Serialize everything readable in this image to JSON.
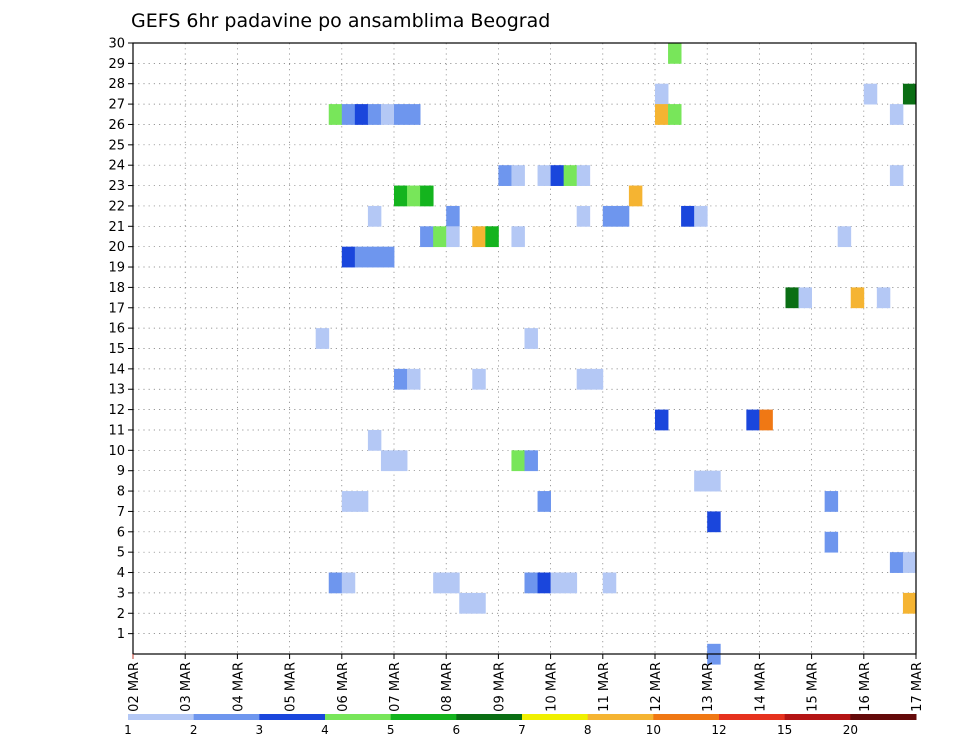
{
  "chart_data": {
    "type": "heatmap",
    "title": "GEFS 6hr padavine po ansamblima Beograd",
    "x_labels": [
      "02 MAR",
      "03 MAR",
      "04 MAR",
      "05 MAR",
      "06 MAR",
      "07 MAR",
      "08 MAR",
      "09 MAR",
      "10 MAR",
      "11 MAR",
      "12 MAR",
      "13 MAR",
      "14 MAR",
      "15 MAR",
      "16 MAR",
      "17 MAR"
    ],
    "y_labels": [
      "1",
      "2",
      "3",
      "4",
      "5",
      "6",
      "7",
      "8",
      "9",
      "10",
      "11",
      "12",
      "13",
      "14",
      "15",
      "16",
      "17",
      "18",
      "19",
      "20",
      "21",
      "22",
      "23",
      "24",
      "25",
      "26",
      "27",
      "28",
      "29",
      "30"
    ],
    "x_range_days": [
      2,
      17
    ],
    "y_range": [
      0,
      30
    ],
    "grid": true,
    "legend_placement": "bottom",
    "colorbar": {
      "labels": [
        "1",
        "2",
        "3",
        "4",
        "5",
        "6",
        "7",
        "8",
        "10",
        "12",
        "15",
        "20"
      ],
      "colors": [
        "#b4c8f5",
        "#6e96ee",
        "#1a46dc",
        "#78e65a",
        "#14b41e",
        "#0a6e14",
        "#f0f000",
        "#f5b432",
        "#f07814",
        "#e6321e",
        "#b41414",
        "#640a0a"
      ]
    },
    "cells": [
      {
        "t": 12.25,
        "m": 30,
        "c": 4
      },
      {
        "t": 12.0,
        "m": 28,
        "c": 1
      },
      {
        "t": 16.0,
        "m": 28,
        "c": 1
      },
      {
        "t": 16.75,
        "m": 28,
        "c": 6
      },
      {
        "t": 5.75,
        "m": 27,
        "c": 4
      },
      {
        "t": 6.0,
        "m": 27,
        "c": 2
      },
      {
        "t": 6.25,
        "m": 27,
        "c": 3
      },
      {
        "t": 6.5,
        "m": 27,
        "c": 2
      },
      {
        "t": 6.75,
        "m": 27,
        "c": 1
      },
      {
        "t": 7.0,
        "m": 27,
        "c": 2
      },
      {
        "t": 7.25,
        "m": 27,
        "c": 2
      },
      {
        "t": 12.0,
        "m": 27,
        "c": 8
      },
      {
        "t": 12.25,
        "m": 27,
        "c": 4
      },
      {
        "t": 16.5,
        "m": 27,
        "c": 1
      },
      {
        "t": 9.0,
        "m": 24,
        "c": 2
      },
      {
        "t": 9.25,
        "m": 24,
        "c": 1
      },
      {
        "t": 9.75,
        "m": 24,
        "c": 1
      },
      {
        "t": 10.0,
        "m": 24,
        "c": 3
      },
      {
        "t": 10.25,
        "m": 24,
        "c": 4
      },
      {
        "t": 10.5,
        "m": 24,
        "c": 1
      },
      {
        "t": 16.5,
        "m": 24,
        "c": 1
      },
      {
        "t": 7.0,
        "m": 23,
        "c": 5
      },
      {
        "t": 7.25,
        "m": 23,
        "c": 4
      },
      {
        "t": 7.5,
        "m": 23,
        "c": 5
      },
      {
        "t": 11.5,
        "m": 23,
        "c": 8
      },
      {
        "t": 6.5,
        "m": 22,
        "c": 1
      },
      {
        "t": 8.0,
        "m": 22,
        "c": 2
      },
      {
        "t": 10.5,
        "m": 22,
        "c": 1
      },
      {
        "t": 11.0,
        "m": 22,
        "c": 2
      },
      {
        "t": 11.25,
        "m": 22,
        "c": 2
      },
      {
        "t": 12.5,
        "m": 22,
        "c": 3
      },
      {
        "t": 12.75,
        "m": 22,
        "c": 1
      },
      {
        "t": 7.5,
        "m": 21,
        "c": 2
      },
      {
        "t": 7.75,
        "m": 21,
        "c": 4
      },
      {
        "t": 8.0,
        "m": 21,
        "c": 1
      },
      {
        "t": 8.5,
        "m": 21,
        "c": 8
      },
      {
        "t": 8.75,
        "m": 21,
        "c": 5
      },
      {
        "t": 9.25,
        "m": 21,
        "c": 1
      },
      {
        "t": 15.5,
        "m": 21,
        "c": 1
      },
      {
        "t": 6.0,
        "m": 20,
        "c": 3
      },
      {
        "t": 6.25,
        "m": 20,
        "c": 2
      },
      {
        "t": 6.5,
        "m": 20,
        "c": 2
      },
      {
        "t": 6.75,
        "m": 20,
        "c": 2
      },
      {
        "t": 14.5,
        "m": 18,
        "c": 6
      },
      {
        "t": 14.75,
        "m": 18,
        "c": 1
      },
      {
        "t": 15.75,
        "m": 18,
        "c": 8
      },
      {
        "t": 16.25,
        "m": 18,
        "c": 1
      },
      {
        "t": 5.5,
        "m": 16,
        "c": 1
      },
      {
        "t": 9.5,
        "m": 16,
        "c": 1
      },
      {
        "t": 7.0,
        "m": 14,
        "c": 2
      },
      {
        "t": 7.25,
        "m": 14,
        "c": 1
      },
      {
        "t": 8.5,
        "m": 14,
        "c": 1
      },
      {
        "t": 10.5,
        "m": 14,
        "c": 1
      },
      {
        "t": 10.75,
        "m": 14,
        "c": 1
      },
      {
        "t": 12.0,
        "m": 12,
        "c": 3
      },
      {
        "t": 13.75,
        "m": 12,
        "c": 3
      },
      {
        "t": 14.0,
        "m": 12,
        "c": 9
      },
      {
        "t": 6.5,
        "m": 11,
        "c": 1
      },
      {
        "t": 6.75,
        "m": 10,
        "c": 1
      },
      {
        "t": 7.0,
        "m": 10,
        "c": 1
      },
      {
        "t": 9.25,
        "m": 10,
        "c": 4
      },
      {
        "t": 9.5,
        "m": 10,
        "c": 2
      },
      {
        "t": 12.75,
        "m": 9,
        "c": 1
      },
      {
        "t": 13.0,
        "m": 9,
        "c": 1
      },
      {
        "t": 6.0,
        "m": 8,
        "c": 1
      },
      {
        "t": 6.25,
        "m": 8,
        "c": 1
      },
      {
        "t": 9.75,
        "m": 8,
        "c": 2
      },
      {
        "t": 15.25,
        "m": 8,
        "c": 2
      },
      {
        "t": 13.0,
        "m": 7,
        "c": 3
      },
      {
        "t": 15.25,
        "m": 6,
        "c": 2
      },
      {
        "t": 16.5,
        "m": 5,
        "c": 2
      },
      {
        "t": 16.75,
        "m": 5,
        "c": 1
      },
      {
        "t": 5.75,
        "m": 4,
        "c": 2
      },
      {
        "t": 6.0,
        "m": 4,
        "c": 1
      },
      {
        "t": 7.75,
        "m": 4,
        "c": 1
      },
      {
        "t": 8.0,
        "m": 4,
        "c": 1
      },
      {
        "t": 9.5,
        "m": 4,
        "c": 2
      },
      {
        "t": 9.75,
        "m": 4,
        "c": 3
      },
      {
        "t": 10.0,
        "m": 4,
        "c": 1
      },
      {
        "t": 10.25,
        "m": 4,
        "c": 1
      },
      {
        "t": 11.0,
        "m": 4,
        "c": 1
      },
      {
        "t": 8.25,
        "m": 3,
        "c": 1
      },
      {
        "t": 8.5,
        "m": 3,
        "c": 1
      },
      {
        "t": 16.75,
        "m": 3,
        "c": 8
      },
      {
        "t": 13.0,
        "m": 0.5,
        "c": 2
      }
    ]
  }
}
